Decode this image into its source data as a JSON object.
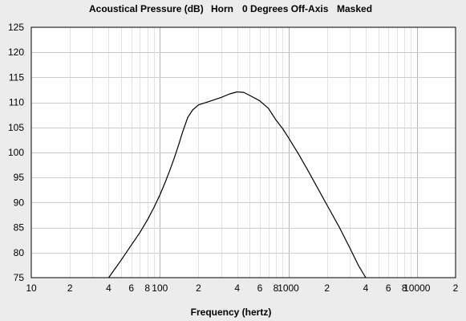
{
  "chart_data": {
    "type": "line",
    "title_parts": [
      "Acoustical Pressure (dB)",
      "Horn",
      "0 Degrees Off-Axis",
      "Masked"
    ],
    "xlabel": "Frequency (hertz)",
    "ylabel": "",
    "x_scale": "log",
    "xlim": [
      10,
      20000
    ],
    "ylim": [
      75,
      125
    ],
    "grid": true,
    "y_ticks": [
      "125",
      "120",
      "115",
      "110",
      "105",
      "100",
      "95",
      "90",
      "85",
      "80",
      "75"
    ],
    "x_ticks": [
      {
        "value": 10,
        "label": "10"
      },
      {
        "value": 20,
        "label": "2"
      },
      {
        "value": 40,
        "label": "4"
      },
      {
        "value": 60,
        "label": "6"
      },
      {
        "value": 80,
        "label": "8"
      },
      {
        "value": 100,
        "label": "100"
      },
      {
        "value": 200,
        "label": "2"
      },
      {
        "value": 400,
        "label": "4"
      },
      {
        "value": 600,
        "label": "6"
      },
      {
        "value": 800,
        "label": "8"
      },
      {
        "value": 1000,
        "label": "1000"
      },
      {
        "value": 2000,
        "label": "2"
      },
      {
        "value": 4000,
        "label": "4"
      },
      {
        "value": 6000,
        "label": "6"
      },
      {
        "value": 8000,
        "label": "8"
      },
      {
        "value": 10000,
        "label": "10000"
      },
      {
        "value": 20000,
        "label": "2"
      }
    ],
    "series": [
      {
        "points": [
          [
            40,
            75
          ],
          [
            50,
            78.5
          ],
          [
            60,
            81.5
          ],
          [
            70,
            84
          ],
          [
            80,
            86.5
          ],
          [
            90,
            89
          ],
          [
            100,
            91.5
          ],
          [
            110,
            94
          ],
          [
            120,
            96.5
          ],
          [
            130,
            99
          ],
          [
            140,
            101.5
          ],
          [
            150,
            104
          ],
          [
            165,
            107
          ],
          [
            180,
            108.5
          ],
          [
            200,
            109.5
          ],
          [
            250,
            110.3
          ],
          [
            300,
            111
          ],
          [
            350,
            111.7
          ],
          [
            400,
            112.1
          ],
          [
            450,
            112
          ],
          [
            500,
            111.4
          ],
          [
            600,
            110.3
          ],
          [
            700,
            108.8
          ],
          [
            800,
            106.5
          ],
          [
            900,
            104.8
          ],
          [
            1000,
            103
          ],
          [
            1200,
            99.7
          ],
          [
            1400,
            96.7
          ],
          [
            1600,
            94
          ],
          [
            2000,
            89.5
          ],
          [
            2500,
            85
          ],
          [
            3000,
            81
          ],
          [
            3500,
            77.5
          ],
          [
            4000,
            75
          ]
        ]
      }
    ]
  }
}
